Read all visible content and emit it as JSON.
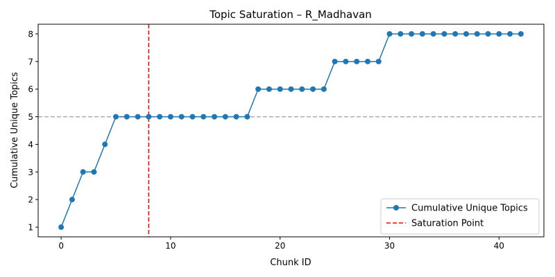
{
  "chart_data": {
    "type": "line",
    "title": "Topic Saturation – R_Madhavan",
    "xlabel": "Chunk ID",
    "ylabel": "Cumulative Unique Topics",
    "xlim": [
      -2.1,
      44.1
    ],
    "ylim": [
      0.65,
      8.35
    ],
    "xticks": [
      0,
      10,
      20,
      30,
      40
    ],
    "yticks": [
      1,
      2,
      3,
      4,
      5,
      6,
      7,
      8
    ],
    "grid": false,
    "legend_position": "bottom-right",
    "series": [
      {
        "name": "Cumulative Unique Topics",
        "color": "#1f77b4",
        "marker": "circle",
        "x": [
          0,
          1,
          2,
          3,
          4,
          5,
          6,
          7,
          8,
          9,
          10,
          11,
          12,
          13,
          14,
          15,
          16,
          17,
          18,
          19,
          20,
          21,
          22,
          23,
          24,
          25,
          26,
          27,
          28,
          29,
          30,
          31,
          32,
          33,
          34,
          35,
          36,
          37,
          38,
          39,
          40,
          41,
          42
        ],
        "values": [
          1,
          2,
          3,
          3,
          4,
          5,
          5,
          5,
          5,
          5,
          5,
          5,
          5,
          5,
          5,
          5,
          5,
          5,
          6,
          6,
          6,
          6,
          6,
          6,
          6,
          7,
          7,
          7,
          7,
          7,
          8,
          8,
          8,
          8,
          8,
          8,
          8,
          8,
          8,
          8,
          8,
          8,
          8
        ]
      }
    ],
    "reference_lines": [
      {
        "name": "Saturation Point",
        "orientation": "vertical",
        "value": 8,
        "color": "#ff0000",
        "style": "dashed",
        "in_legend": true
      },
      {
        "orientation": "horizontal",
        "value": 5,
        "color": "#aaaaaa",
        "style": "dashed",
        "in_legend": false
      }
    ]
  }
}
